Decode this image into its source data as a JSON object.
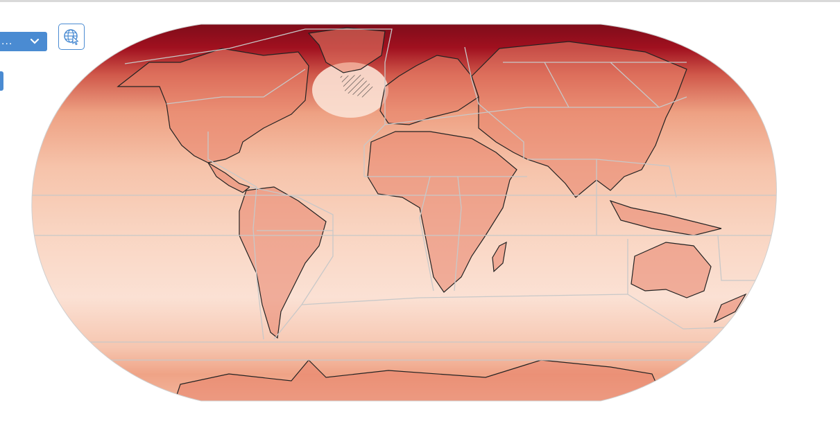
{
  "toolbar": {
    "dropdown_value": "...",
    "icons": {
      "dropdown": "chevron-down-icon",
      "globe": "globe-pointer-icon"
    }
  },
  "map": {
    "projection": "robinson",
    "variable_field": "warming-heatmap",
    "colors": {
      "ocean_light": "#fbe1d4",
      "ocean_mid": "#f6c3aa",
      "land_warm": "#e8826a",
      "arctic": "#7a0c19",
      "polar_dark": "#a0101f",
      "region_border": "#c8c8c8",
      "coastline": "#222222"
    },
    "hatched_area": "north-atlantic"
  }
}
